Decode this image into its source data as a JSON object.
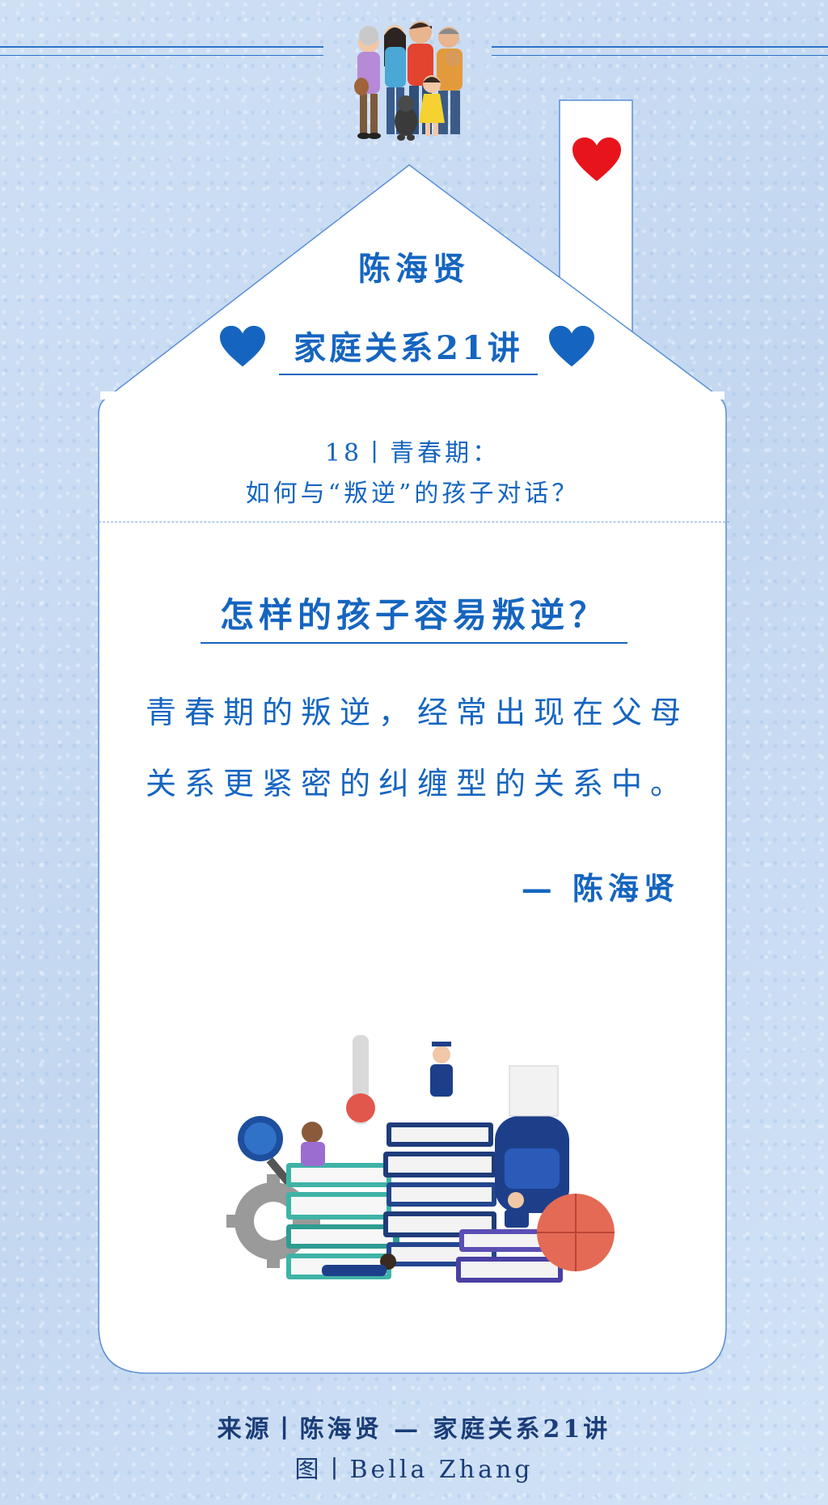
{
  "header": {
    "name": "陈海贤",
    "series": "家庭关系21讲"
  },
  "episode": {
    "line1": "18丨青春期：",
    "line2": "如何与“叛逆”的孩子对话？"
  },
  "main": {
    "question": "怎样的孩子容易叛逆？",
    "quote_line1": "青春期的叛逆，经常出现在父母",
    "quote_line2": "关系更紧密的纠缠型的关系中。",
    "author": "— 陈海贤"
  },
  "footer": {
    "source": "来源丨陈海贤 — 家庭关系21讲",
    "credit": "图丨Bella Zhang"
  },
  "icons": [
    "family-illustration",
    "red-heart-icon",
    "blue-heart-icon",
    "books-students-illustration"
  ],
  "colors": {
    "accent": "#1565c0",
    "background": "#c9dcf3",
    "card": "#ffffff",
    "heart_red": "#e8141b"
  }
}
